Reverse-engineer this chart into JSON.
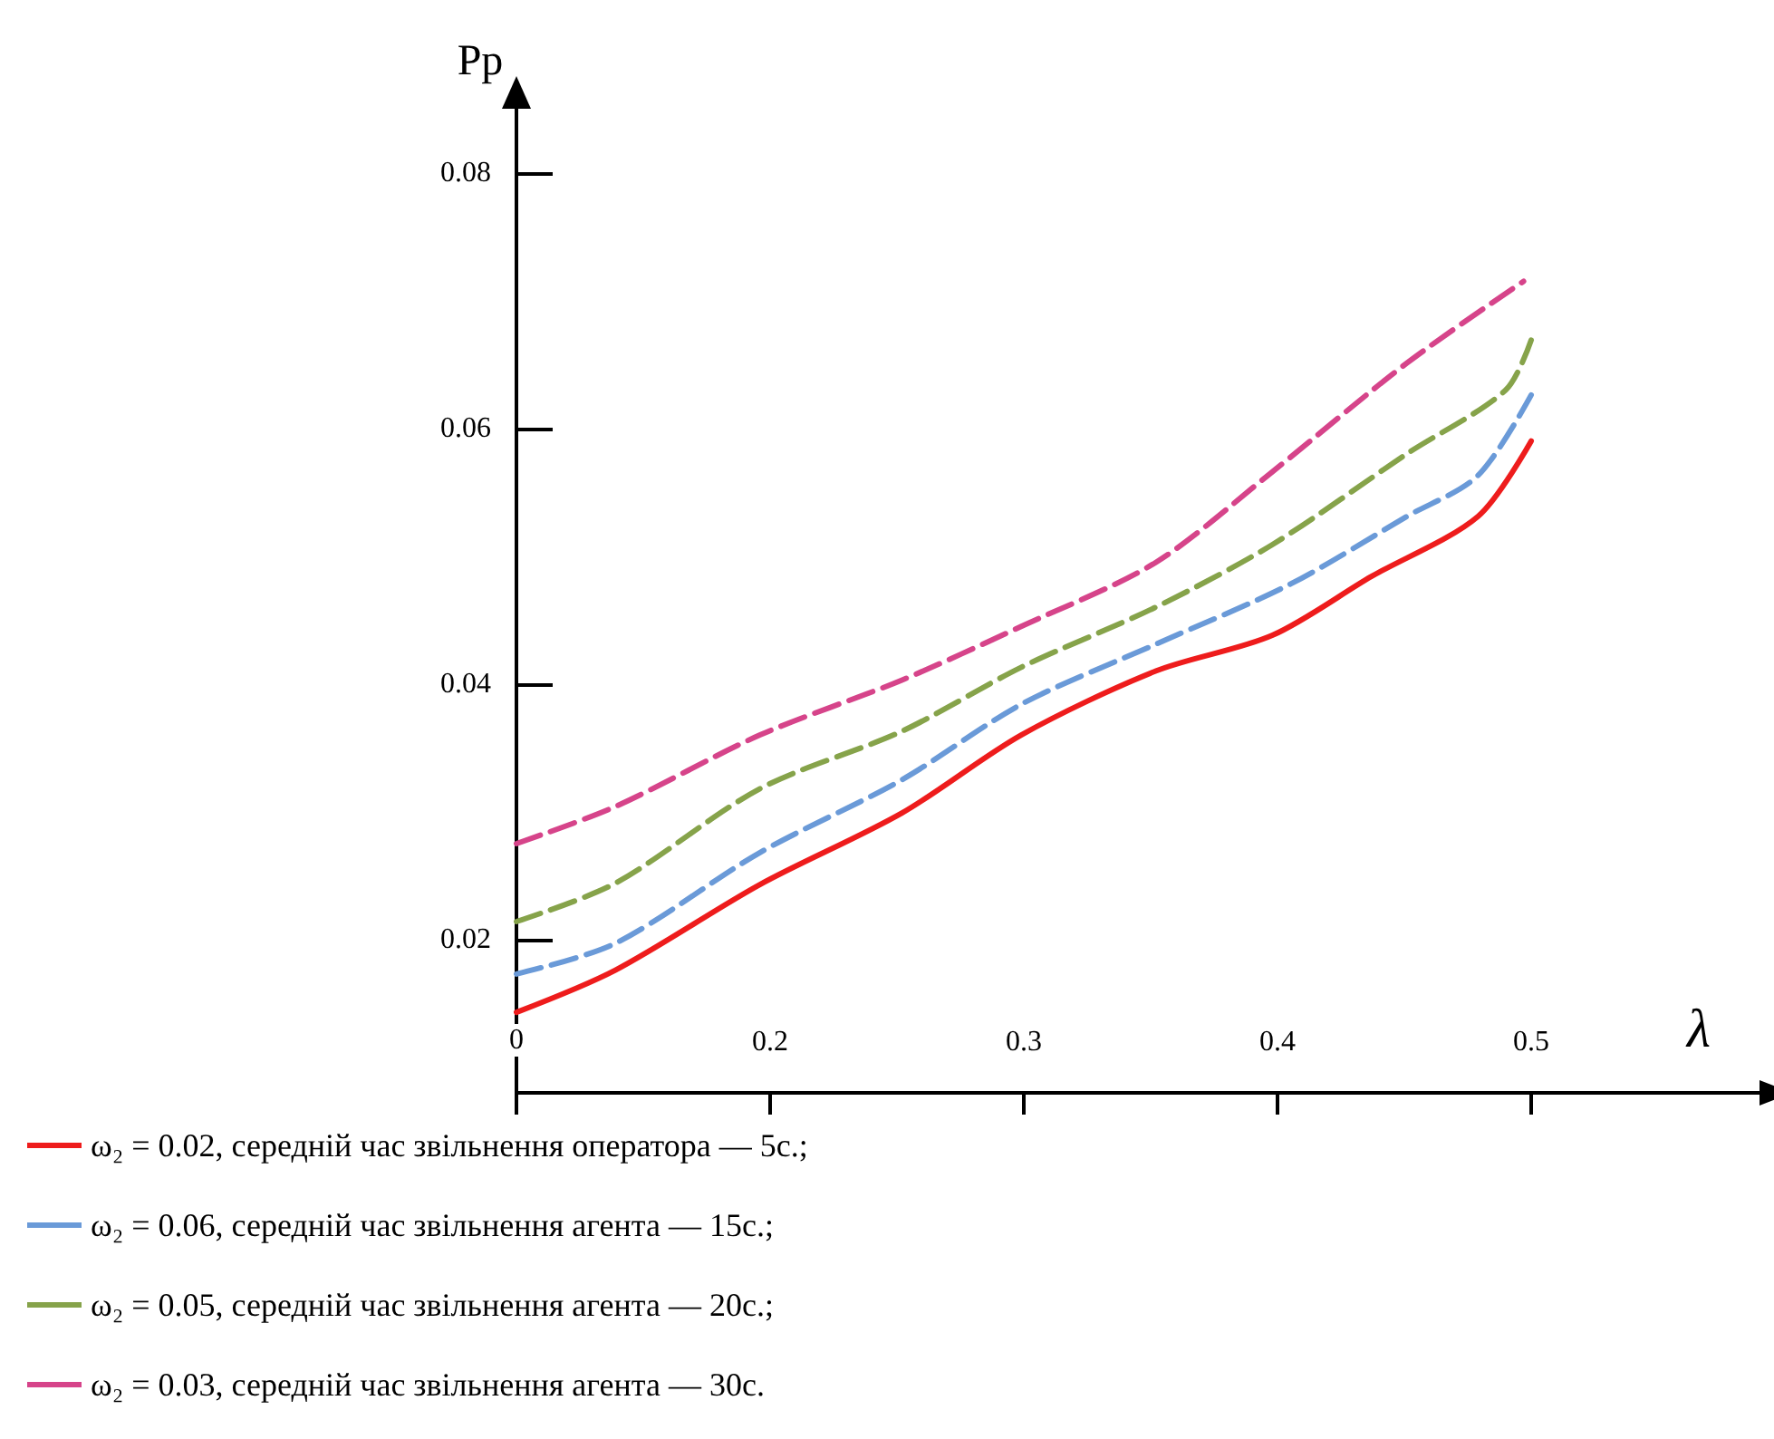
{
  "chart_data": {
    "type": "line",
    "xlabel": "λ",
    "ylabel": "Pp",
    "xlim": [
      0.1,
      0.59
    ],
    "xticks": [
      {
        "value": 0.1,
        "label": "0"
      },
      0.2,
      0.3,
      0.4,
      0.5
    ],
    "ylim": [
      0.008,
      0.085
    ],
    "yticks": [
      0.02,
      0.04,
      0.06,
      0.08
    ],
    "grid": false,
    "legend": "bottom",
    "marker": "none",
    "series": [
      {
        "name": "ω₂ = 0.02, середній час звільнення оператора — 5с.;",
        "color": "#ee1c1c",
        "line_style": "solid",
        "x": [
          0.1,
          0.139,
          0.196,
          0.252,
          0.299,
          0.352,
          0.398,
          0.437,
          0.479,
          0.5
        ],
        "values": [
          0.0143,
          0.0176,
          0.0243,
          0.0299,
          0.036,
          0.041,
          0.0438,
          0.0484,
          0.0531,
          0.059
        ]
      },
      {
        "name": "ω₂ = 0.06, середній час звільнення агента — 15с.;",
        "color": "#6a9ad8",
        "line_style": "dashed",
        "x": [
          0.1,
          0.139,
          0.196,
          0.252,
          0.299,
          0.352,
          0.405,
          0.451,
          0.479,
          0.5
        ],
        "values": [
          0.0173,
          0.0197,
          0.0268,
          0.0325,
          0.0384,
          0.0431,
          0.0478,
          0.0531,
          0.0563,
          0.0626
        ]
      },
      {
        "name": "ω₂ = 0.05, середній час звільнення агента — 20с.;",
        "color": "#86a34a",
        "line_style": "dashed",
        "x": [
          0.1,
          0.139,
          0.196,
          0.252,
          0.299,
          0.352,
          0.398,
          0.451,
          0.49,
          0.5
        ],
        "values": [
          0.0214,
          0.0244,
          0.0318,
          0.0363,
          0.0413,
          0.046,
          0.0509,
          0.058,
          0.063,
          0.0669
        ]
      },
      {
        "name": "ω₂ = 0.03, середній час звільнення агента — 30с.",
        "color": "#d6448a",
        "line_style": "dashed",
        "x": [
          0.1,
          0.139,
          0.196,
          0.252,
          0.299,
          0.352,
          0.398,
          0.451,
          0.497
        ],
        "values": [
          0.0275,
          0.0304,
          0.036,
          0.0403,
          0.0445,
          0.0495,
          0.0566,
          0.0651,
          0.0715
        ]
      }
    ]
  }
}
